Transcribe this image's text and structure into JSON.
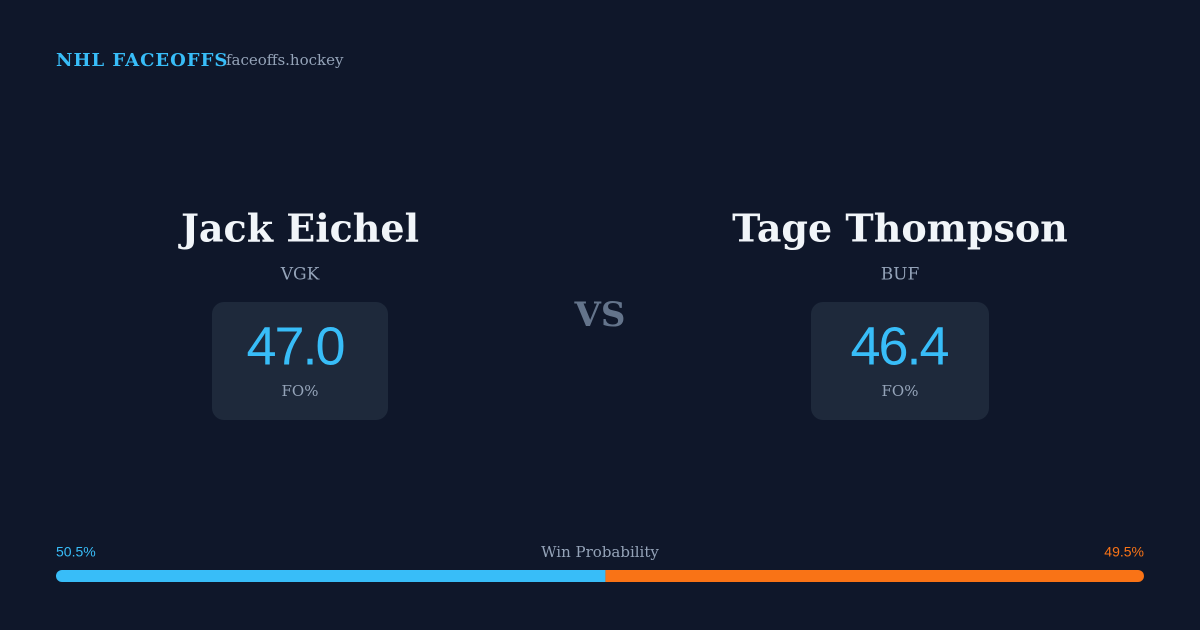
{
  "header": {
    "title": "NHL FACEOFFS",
    "site": "faceoffs.hockey"
  },
  "players": [
    {
      "name": "Jack Eichel",
      "team": "VGK",
      "stat": "47.0",
      "stat_label": "FO%"
    },
    {
      "name": "Tage Thompson",
      "team": "BUF",
      "stat": "46.4",
      "stat_label": "FO%"
    }
  ],
  "vs": "VS",
  "win_probability": {
    "label": "Win Probability",
    "values": [
      50.5,
      49.5
    ],
    "value_labels": [
      "50.5%",
      "49.5%"
    ],
    "colors": [
      "#38bdf8",
      "#f97316"
    ]
  }
}
